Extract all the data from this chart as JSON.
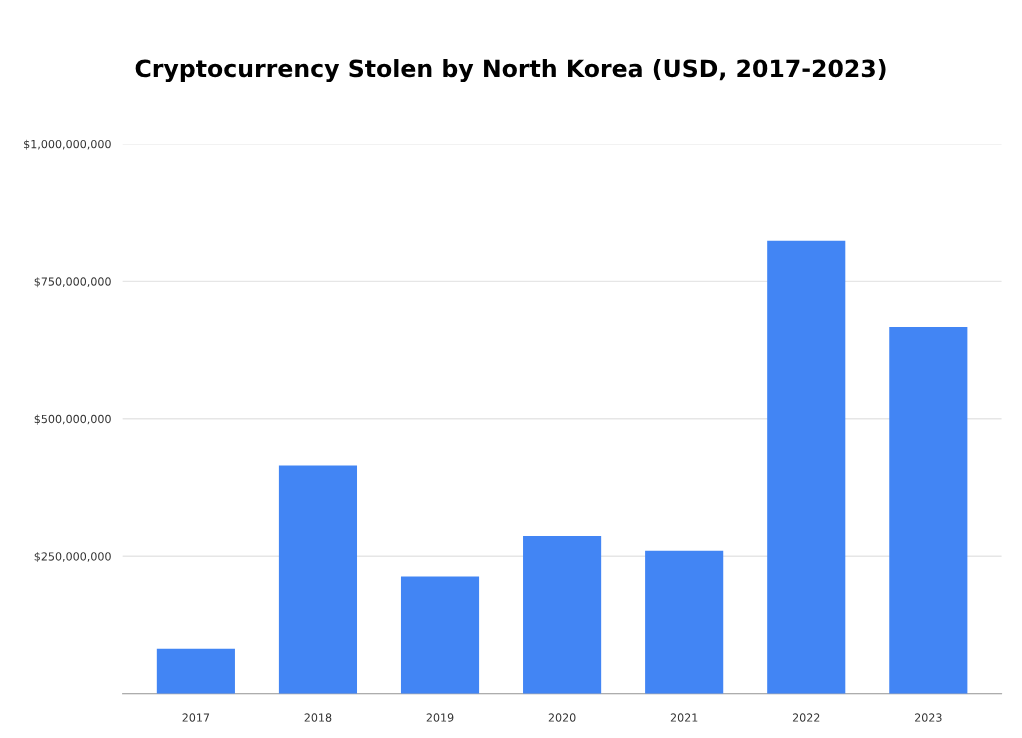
{
  "chart_data": {
    "type": "bar",
    "title": "Cryptocurrency Stolen by North Korea (USD, 2017-2023)",
    "categories": [
      "2017",
      "2018",
      "2019",
      "2020",
      "2021",
      "2022",
      "2023"
    ],
    "values": [
      82000000,
      415000000,
      213000000,
      287000000,
      260000000,
      824000000,
      667000000
    ],
    "color": "#4285f4",
    "ylim": [
      0,
      1000000000
    ],
    "yticks": [
      {
        "value": 0,
        "label": null
      },
      {
        "value": 250000000,
        "label": "$250,000,000"
      },
      {
        "value": 500000000,
        "label": "$500,000,000"
      },
      {
        "value": 750000000,
        "label": "$750,000,000"
      },
      {
        "value": 1000000000,
        "label": "$1,000,000,000"
      }
    ],
    "grid": "y"
  }
}
